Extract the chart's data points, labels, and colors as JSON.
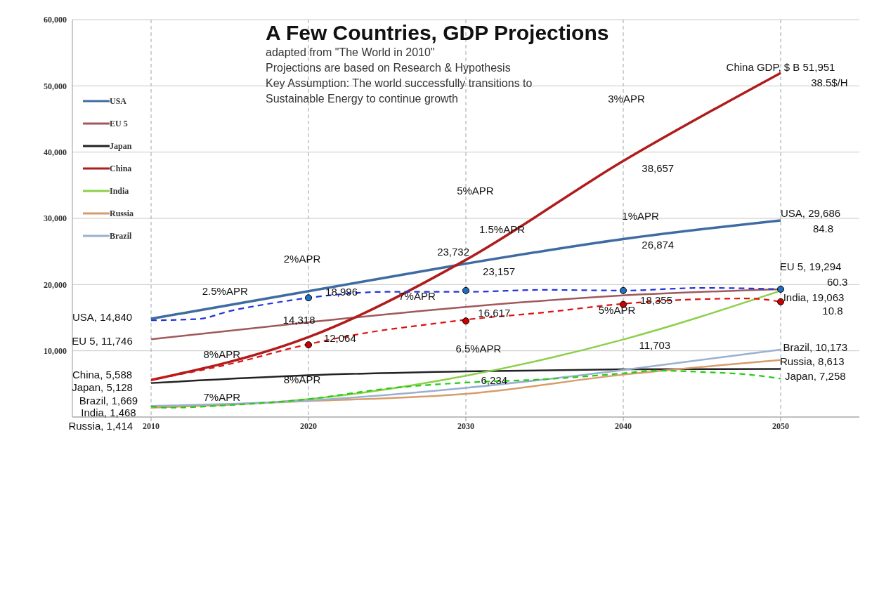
{
  "chart_data": {
    "type": "line",
    "title": "A Few Countries, GDP Projections",
    "subtitle": "adapted from \"The World in 2010\"\nProjections are based on Research & Hypothesis\nKey Assumption: The world successfully  transitions to\nSustainable Energy to continue growth",
    "x": [
      2010,
      2020,
      2030,
      2040,
      2050
    ],
    "xlim": [
      2005,
      2055
    ],
    "xticks": [
      2010,
      2020,
      2030,
      2040,
      2050
    ],
    "ylim": [
      0,
      60000
    ],
    "yticks": [
      {
        "value": 10000,
        "label": "10,000"
      },
      {
        "value": 20000,
        "label": "20,000"
      },
      {
        "value": 30000,
        "label": "30,000"
      },
      {
        "value": 40000,
        "label": "40,000"
      },
      {
        "value": 50000,
        "label": "50,000"
      },
      {
        "value": 60000,
        "label": "60,000"
      }
    ],
    "grid": true,
    "legend": "top left",
    "series": [
      {
        "name": "USA",
        "color": "#3f6ba3",
        "values": [
          14840,
          18996,
          23157,
          26874,
          29686
        ]
      },
      {
        "name": "EU 5",
        "color": "#a0585a",
        "values": [
          11746,
          14318,
          16617,
          18355,
          19294
        ]
      },
      {
        "name": "Japan",
        "color": "#222222",
        "values": [
          5128,
          6300,
          6900,
          7200,
          7258
        ]
      },
      {
        "name": "China",
        "color": "#b01c1c",
        "values": [
          5588,
          12064,
          23732,
          38657,
          51951
        ]
      },
      {
        "name": "India",
        "color": "#8ccf4a",
        "values": [
          1468,
          2700,
          6234,
          11703,
          19063
        ]
      },
      {
        "name": "Russia",
        "color": "#d89c6a",
        "values": [
          1414,
          2400,
          3500,
          6400,
          8613
        ]
      },
      {
        "name": "Brazil",
        "color": "#9ab0d0",
        "values": [
          1669,
          2500,
          4400,
          7100,
          10173
        ]
      },
      {
        "type": "line",
        "line_style": "dashed",
        "color": "#2233dd",
        "x": [
          2010,
          2013,
          2015,
          2018,
          2020,
          2025,
          2030,
          2035,
          2040,
          2045,
          2050
        ],
        "values": [
          14600,
          14800,
          16000,
          17300,
          18000,
          18900,
          18900,
          19200,
          19100,
          19500,
          19300
        ]
      },
      {
        "type": "line",
        "line_style": "dashed",
        "color": "#dd1111",
        "x": [
          2010,
          2015,
          2020,
          2025,
          2027,
          2030,
          2035,
          2040,
          2045,
          2048,
          2050
        ],
        "values": [
          5600,
          8000,
          11000,
          13200,
          13800,
          14700,
          15800,
          17100,
          17800,
          17900,
          17400
        ]
      },
      {
        "type": "line",
        "line_style": "dashed",
        "color": "#22cc11",
        "x": [
          2010,
          2011,
          2015,
          2020,
          2025,
          2030,
          2035,
          2040,
          2042,
          2045,
          2048,
          2050
        ],
        "values": [
          1600,
          1400,
          1800,
          2700,
          4300,
          5200,
          5700,
          6600,
          7000,
          6800,
          6400,
          5800
        ]
      },
      {
        "type": "scatter",
        "marker": "circle",
        "color": "#1f6fbf",
        "x": [
          2020,
          2030,
          2040,
          2050
        ],
        "values": [
          18000,
          19100,
          19100,
          19300
        ]
      },
      {
        "type": "scatter",
        "marker": "circle",
        "color": "#cc0000",
        "x": [
          2020,
          2030,
          2040,
          2050
        ],
        "values": [
          10900,
          14500,
          17000,
          17400
        ]
      }
    ],
    "annotations": [
      "3%APR",
      "5%APR",
      "2%APR",
      "1%APR",
      "1.5%APR",
      "2.5%APR",
      "7%APR",
      "8%APR",
      "6.5%APR",
      "5%APR",
      "8%APR",
      "7%APR",
      "38,657",
      "26,874",
      "23,732",
      "23,157",
      "18,996",
      "16,617",
      "18,355",
      "14,318",
      "12,064",
      "11,703",
      "6,234",
      "USA, 14,840",
      "EU 5, 11,746",
      "China, 5,588",
      "Japan, 5,128",
      "Brazil, 1,669",
      "India, 1,468",
      "Russia, 1,414",
      "China GDP, $ B 51,951",
      "38.5$/H",
      "USA, 29,686",
      "84.8",
      "EU 5, 19,294",
      "60.3",
      "India, 19,063",
      "10.8",
      "Brazil, 10,173",
      "Russia, 8,613",
      "Japan, 7,258"
    ]
  }
}
